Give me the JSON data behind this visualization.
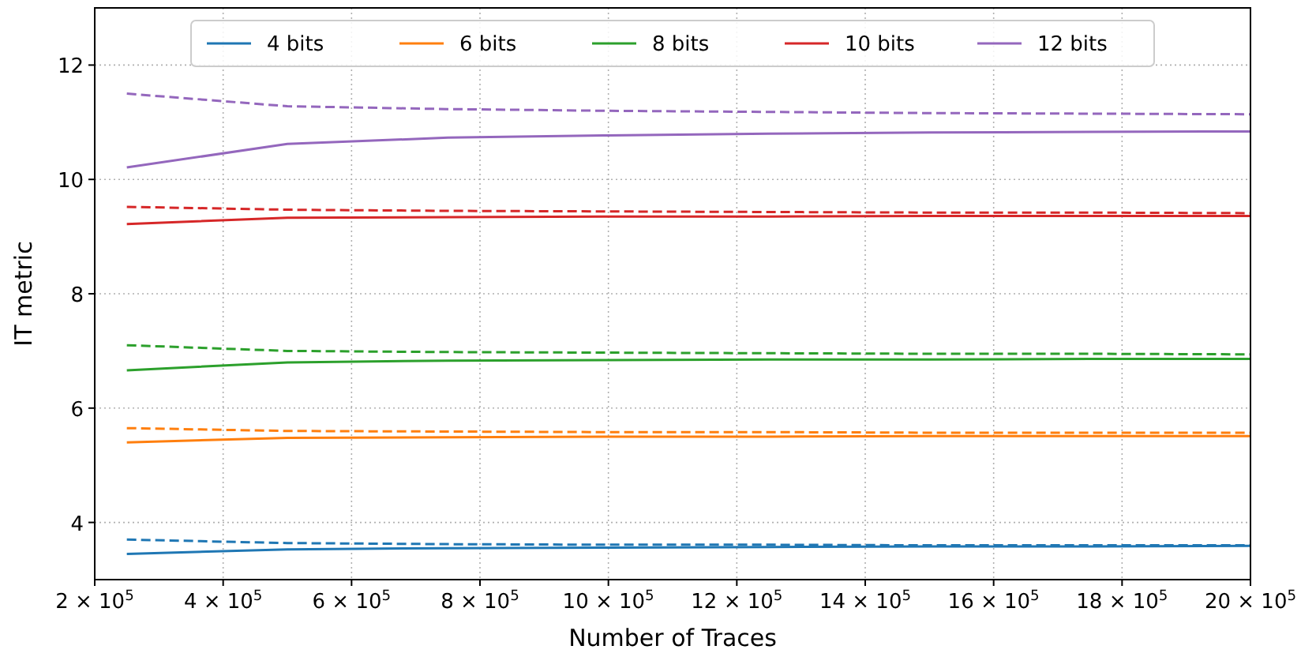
{
  "chart_data": {
    "type": "line",
    "xlabel": "Number of Traces",
    "ylabel": "IT metric",
    "x": [
      250000,
      500000,
      750000,
      1000000,
      1250000,
      1500000,
      1750000,
      2000000
    ],
    "xlim": [
      200000,
      2000000
    ],
    "xticks": [
      {
        "value": 200000,
        "label": "2 × 10$^{5}$"
      },
      {
        "value": 400000,
        "label": "4 × 10$^{5}$"
      },
      {
        "value": 600000,
        "label": "6 × 10$^{5}$"
      },
      {
        "value": 800000,
        "label": "8 × 10$^{5}$"
      },
      {
        "value": 1000000,
        "label": "10 × 10$^{5}$"
      },
      {
        "value": 1200000,
        "label": "12 × 10$^{5}$"
      },
      {
        "value": 1400000,
        "label": "14 × 10$^{5}$"
      },
      {
        "value": 1600000,
        "label": "16 × 10$^{5}$"
      },
      {
        "value": 1800000,
        "label": "18 × 10$^{5}$"
      },
      {
        "value": 2000000,
        "label": "20 × 10$^{5}$"
      }
    ],
    "ylim": [
      3,
      13
    ],
    "yticks": [
      4,
      6,
      8,
      10,
      12
    ],
    "grid": true,
    "legend": "top",
    "line_style": "solid",
    "marker": "none",
    "series": [
      {
        "name": "4 bits",
        "color": "#1f77b4",
        "values": [
          3.45,
          3.53,
          3.55,
          3.56,
          3.57,
          3.58,
          3.58,
          3.59
        ]
      },
      {
        "name": "6 bits",
        "color": "#ff7f0e",
        "values": [
          5.4,
          5.48,
          5.49,
          5.5,
          5.5,
          5.51,
          5.51,
          5.51
        ]
      },
      {
        "name": "8 bits",
        "color": "#2ca02c",
        "values": [
          6.66,
          6.8,
          6.83,
          6.84,
          6.85,
          6.85,
          6.86,
          6.86
        ]
      },
      {
        "name": "10 bits",
        "color": "#d62728",
        "values": [
          9.22,
          9.33,
          9.34,
          9.35,
          9.35,
          9.36,
          9.36,
          9.36
        ]
      },
      {
        "name": "12 bits",
        "color": "#9467bd",
        "values": [
          10.21,
          10.62,
          10.73,
          10.77,
          10.8,
          10.82,
          10.83,
          10.84
        ]
      },
      {
        "color": "#1f77b4",
        "line_style": "dashed",
        "values": [
          3.7,
          3.64,
          3.62,
          3.61,
          3.61,
          3.6,
          3.6,
          3.6
        ]
      },
      {
        "color": "#ff7f0e",
        "line_style": "dashed",
        "values": [
          5.65,
          5.6,
          5.59,
          5.58,
          5.58,
          5.57,
          5.57,
          5.57
        ]
      },
      {
        "color": "#2ca02c",
        "line_style": "dashed",
        "values": [
          7.1,
          7.0,
          6.98,
          6.97,
          6.96,
          6.95,
          6.95,
          6.94
        ]
      },
      {
        "color": "#d62728",
        "line_style": "dashed",
        "values": [
          9.52,
          9.47,
          9.45,
          9.44,
          9.43,
          9.42,
          9.42,
          9.41
        ]
      },
      {
        "color": "#9467bd",
        "line_style": "dashed",
        "values": [
          11.5,
          11.28,
          11.23,
          11.2,
          11.18,
          11.16,
          11.15,
          11.14
        ]
      }
    ]
  }
}
